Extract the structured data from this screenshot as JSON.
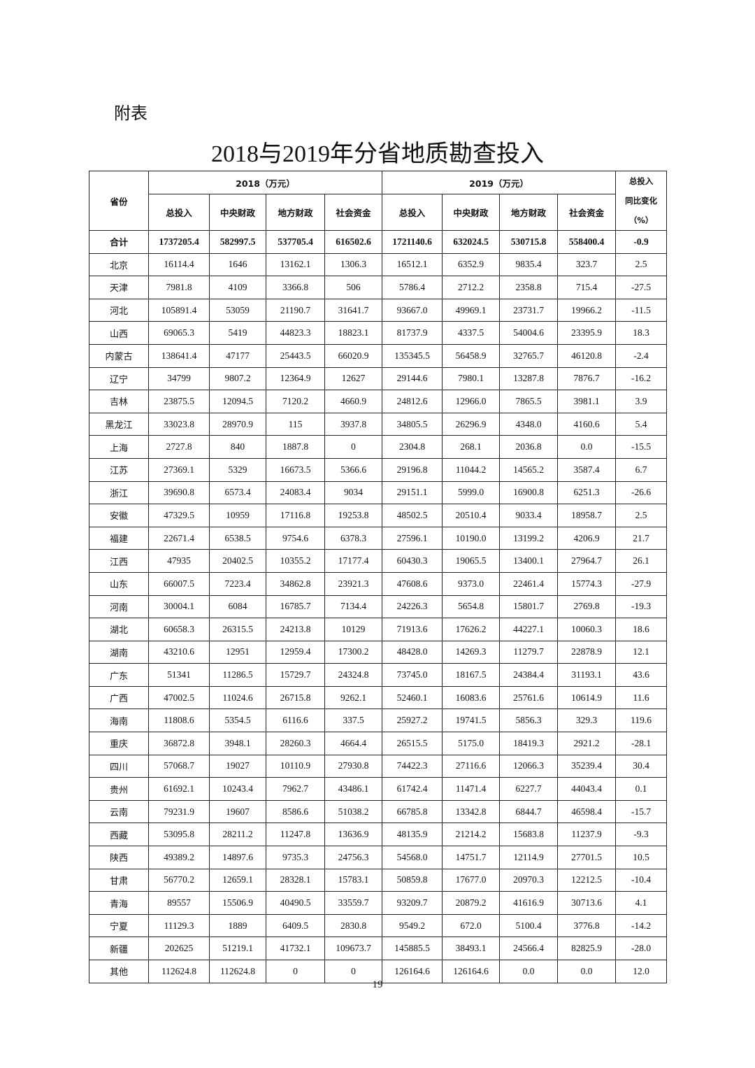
{
  "appendix_label": "附表",
  "title": "2018与2019年分省地质勘查投入",
  "headers": {
    "province": "省份",
    "year2018": "2018（万元）",
    "year2019": "2019（万元）",
    "change_line1": "总投入",
    "change_line2": "同比变化",
    "change_line3": "（%）",
    "sub": [
      "总投入",
      "中央财政",
      "地方财政",
      "社会资金",
      "总投入",
      "中央财政",
      "地方财政",
      "社会资金"
    ]
  },
  "rows": [
    [
      "合计",
      "1737205.4",
      "582997.5",
      "537705.4",
      "616502.6",
      "1721140.6",
      "632024.5",
      "530715.8",
      "558400.4",
      "-0.9"
    ],
    [
      "北京",
      "16114.4",
      "1646",
      "13162.1",
      "1306.3",
      "16512.1",
      "6352.9",
      "9835.4",
      "323.7",
      "2.5"
    ],
    [
      "天津",
      "7981.8",
      "4109",
      "3366.8",
      "506",
      "5786.4",
      "2712.2",
      "2358.8",
      "715.4",
      "-27.5"
    ],
    [
      "河北",
      "105891.4",
      "53059",
      "21190.7",
      "31641.7",
      "93667.0",
      "49969.1",
      "23731.7",
      "19966.2",
      "-11.5"
    ],
    [
      "山西",
      "69065.3",
      "5419",
      "44823.3",
      "18823.1",
      "81737.9",
      "4337.5",
      "54004.6",
      "23395.9",
      "18.3"
    ],
    [
      "内蒙古",
      "138641.4",
      "47177",
      "25443.5",
      "66020.9",
      "135345.5",
      "56458.9",
      "32765.7",
      "46120.8",
      "-2.4"
    ],
    [
      "辽宁",
      "34799",
      "9807.2",
      "12364.9",
      "12627",
      "29144.6",
      "7980.1",
      "13287.8",
      "7876.7",
      "-16.2"
    ],
    [
      "吉林",
      "23875.5",
      "12094.5",
      "7120.2",
      "4660.9",
      "24812.6",
      "12966.0",
      "7865.5",
      "3981.1",
      "3.9"
    ],
    [
      "黑龙江",
      "33023.8",
      "28970.9",
      "115",
      "3937.8",
      "34805.5",
      "26296.9",
      "4348.0",
      "4160.6",
      "5.4"
    ],
    [
      "上海",
      "2727.8",
      "840",
      "1887.8",
      "0",
      "2304.8",
      "268.1",
      "2036.8",
      "0.0",
      "-15.5"
    ],
    [
      "江苏",
      "27369.1",
      "5329",
      "16673.5",
      "5366.6",
      "29196.8",
      "11044.2",
      "14565.2",
      "3587.4",
      "6.7"
    ],
    [
      "浙江",
      "39690.8",
      "6573.4",
      "24083.4",
      "9034",
      "29151.1",
      "5999.0",
      "16900.8",
      "6251.3",
      "-26.6"
    ],
    [
      "安徽",
      "47329.5",
      "10959",
      "17116.8",
      "19253.8",
      "48502.5",
      "20510.4",
      "9033.4",
      "18958.7",
      "2.5"
    ],
    [
      "福建",
      "22671.4",
      "6538.5",
      "9754.6",
      "6378.3",
      "27596.1",
      "10190.0",
      "13199.2",
      "4206.9",
      "21.7"
    ],
    [
      "江西",
      "47935",
      "20402.5",
      "10355.2",
      "17177.4",
      "60430.3",
      "19065.5",
      "13400.1",
      "27964.7",
      "26.1"
    ],
    [
      "山东",
      "66007.5",
      "7223.4",
      "34862.8",
      "23921.3",
      "47608.6",
      "9373.0",
      "22461.4",
      "15774.3",
      "-27.9"
    ],
    [
      "河南",
      "30004.1",
      "6084",
      "16785.7",
      "7134.4",
      "24226.3",
      "5654.8",
      "15801.7",
      "2769.8",
      "-19.3"
    ],
    [
      "湖北",
      "60658.3",
      "26315.5",
      "24213.8",
      "10129",
      "71913.6",
      "17626.2",
      "44227.1",
      "10060.3",
      "18.6"
    ],
    [
      "湖南",
      "43210.6",
      "12951",
      "12959.4",
      "17300.2",
      "48428.0",
      "14269.3",
      "11279.7",
      "22878.9",
      "12.1"
    ],
    [
      "广东",
      "51341",
      "11286.5",
      "15729.7",
      "24324.8",
      "73745.0",
      "18167.5",
      "24384.4",
      "31193.1",
      "43.6"
    ],
    [
      "广西",
      "47002.5",
      "11024.6",
      "26715.8",
      "9262.1",
      "52460.1",
      "16083.6",
      "25761.6",
      "10614.9",
      "11.6"
    ],
    [
      "海南",
      "11808.6",
      "5354.5",
      "6116.6",
      "337.5",
      "25927.2",
      "19741.5",
      "5856.3",
      "329.3",
      "119.6"
    ],
    [
      "重庆",
      "36872.8",
      "3948.1",
      "28260.3",
      "4664.4",
      "26515.5",
      "5175.0",
      "18419.3",
      "2921.2",
      "-28.1"
    ],
    [
      "四川",
      "57068.7",
      "19027",
      "10110.9",
      "27930.8",
      "74422.3",
      "27116.6",
      "12066.3",
      "35239.4",
      "30.4"
    ],
    [
      "贵州",
      "61692.1",
      "10243.4",
      "7962.7",
      "43486.1",
      "61742.4",
      "11471.4",
      "6227.7",
      "44043.4",
      "0.1"
    ],
    [
      "云南",
      "79231.9",
      "19607",
      "8586.6",
      "51038.2",
      "66785.8",
      "13342.8",
      "6844.7",
      "46598.4",
      "-15.7"
    ],
    [
      "西藏",
      "53095.8",
      "28211.2",
      "11247.8",
      "13636.9",
      "48135.9",
      "21214.2",
      "15683.8",
      "11237.9",
      "-9.3"
    ],
    [
      "陕西",
      "49389.2",
      "14897.6",
      "9735.3",
      "24756.3",
      "54568.0",
      "14751.7",
      "12114.9",
      "27701.5",
      "10.5"
    ],
    [
      "甘肃",
      "56770.2",
      "12659.1",
      "28328.1",
      "15783.1",
      "50859.8",
      "17677.0",
      "20970.3",
      "12212.5",
      "-10.4"
    ],
    [
      "青海",
      "89557",
      "15506.9",
      "40490.5",
      "33559.7",
      "93209.7",
      "20879.2",
      "41616.9",
      "30713.6",
      "4.1"
    ],
    [
      "宁夏",
      "11129.3",
      "1889",
      "6409.5",
      "2830.8",
      "9549.2",
      "672.0",
      "5100.4",
      "3776.8",
      "-14.2"
    ],
    [
      "新疆",
      "202625",
      "51219.1",
      "41732.1",
      "109673.7",
      "145885.5",
      "38493.1",
      "24566.4",
      "82825.9",
      "-28.0"
    ],
    [
      "其他",
      "112624.8",
      "112624.8",
      "0",
      "0",
      "126164.6",
      "126164.6",
      "0.0",
      "0.0",
      "12.0"
    ]
  ],
  "page_number": "19"
}
